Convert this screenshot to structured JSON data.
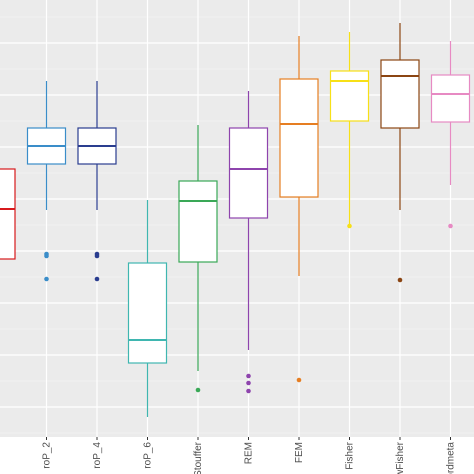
{
  "chart_data": {
    "type": "box",
    "title": "",
    "xlabel": "",
    "ylabel": "",
    "ylim": [
      0,
      437
    ],
    "grid": true,
    "legend": "none",
    "categories": [
      "",
      "roP_2",
      "roP_4",
      "roP_6",
      "Stouffer",
      "REM",
      "FEM",
      "Fisher",
      "wFisher",
      "ordmeta"
    ],
    "boxes": [
      {
        "label": "",
        "color": "#d7191c",
        "whisker_low": 178,
        "q1": 178,
        "median": 228,
        "q3": 268,
        "whisker_high": 268,
        "outliers": []
      },
      {
        "label": "roP_2",
        "color": "#3a8dc9",
        "whisker_low": 227,
        "q1": 273,
        "median": 291,
        "q3": 309,
        "whisker_high": 356,
        "outliers": [
          183,
          158,
          181
        ]
      },
      {
        "label": "roP_4",
        "color": "#2a3d8f",
        "whisker_low": 227,
        "q1": 273,
        "median": 291,
        "q3": 309,
        "whisker_high": 356,
        "outliers": [
          183,
          158,
          181
        ]
      },
      {
        "label": "roP_6",
        "color": "#3fb6b0",
        "whisker_low": 20,
        "q1": 74,
        "median": 97,
        "q3": 174,
        "whisker_high": 237,
        "outliers": []
      },
      {
        "label": "Stouffer",
        "color": "#3aa857",
        "whisker_low": 66,
        "q1": 175,
        "median": 236,
        "q3": 256,
        "whisker_high": 312,
        "outliers": [
          47
        ]
      },
      {
        "label": "REM",
        "color": "#8e44ad",
        "whisker_low": 87,
        "q1": 219,
        "median": 268,
        "q3": 309,
        "whisker_high": 346,
        "outliers": [
          61,
          54,
          46
        ]
      },
      {
        "label": "FEM",
        "color": "#e67e22",
        "whisker_low": 161,
        "q1": 240,
        "median": 313,
        "q3": 358,
        "whisker_high": 401,
        "outliers": [
          57
        ]
      },
      {
        "label": "Fisher",
        "color": "#f7e017",
        "whisker_low": 211,
        "q1": 316,
        "median": 356,
        "q3": 366,
        "whisker_high": 405,
        "outliers": [
          211
        ]
      },
      {
        "label": "wFisher",
        "color": "#8b4513",
        "whisker_low": 227,
        "q1": 309,
        "median": 361,
        "q3": 377,
        "whisker_high": 414,
        "outliers": [
          157
        ]
      },
      {
        "label": "ordmeta",
        "color": "#e78ac3",
        "whisker_low": 252,
        "q1": 315,
        "median": 343,
        "q3": 362,
        "whisker_high": 396,
        "outliers": [
          211
        ]
      }
    ]
  }
}
